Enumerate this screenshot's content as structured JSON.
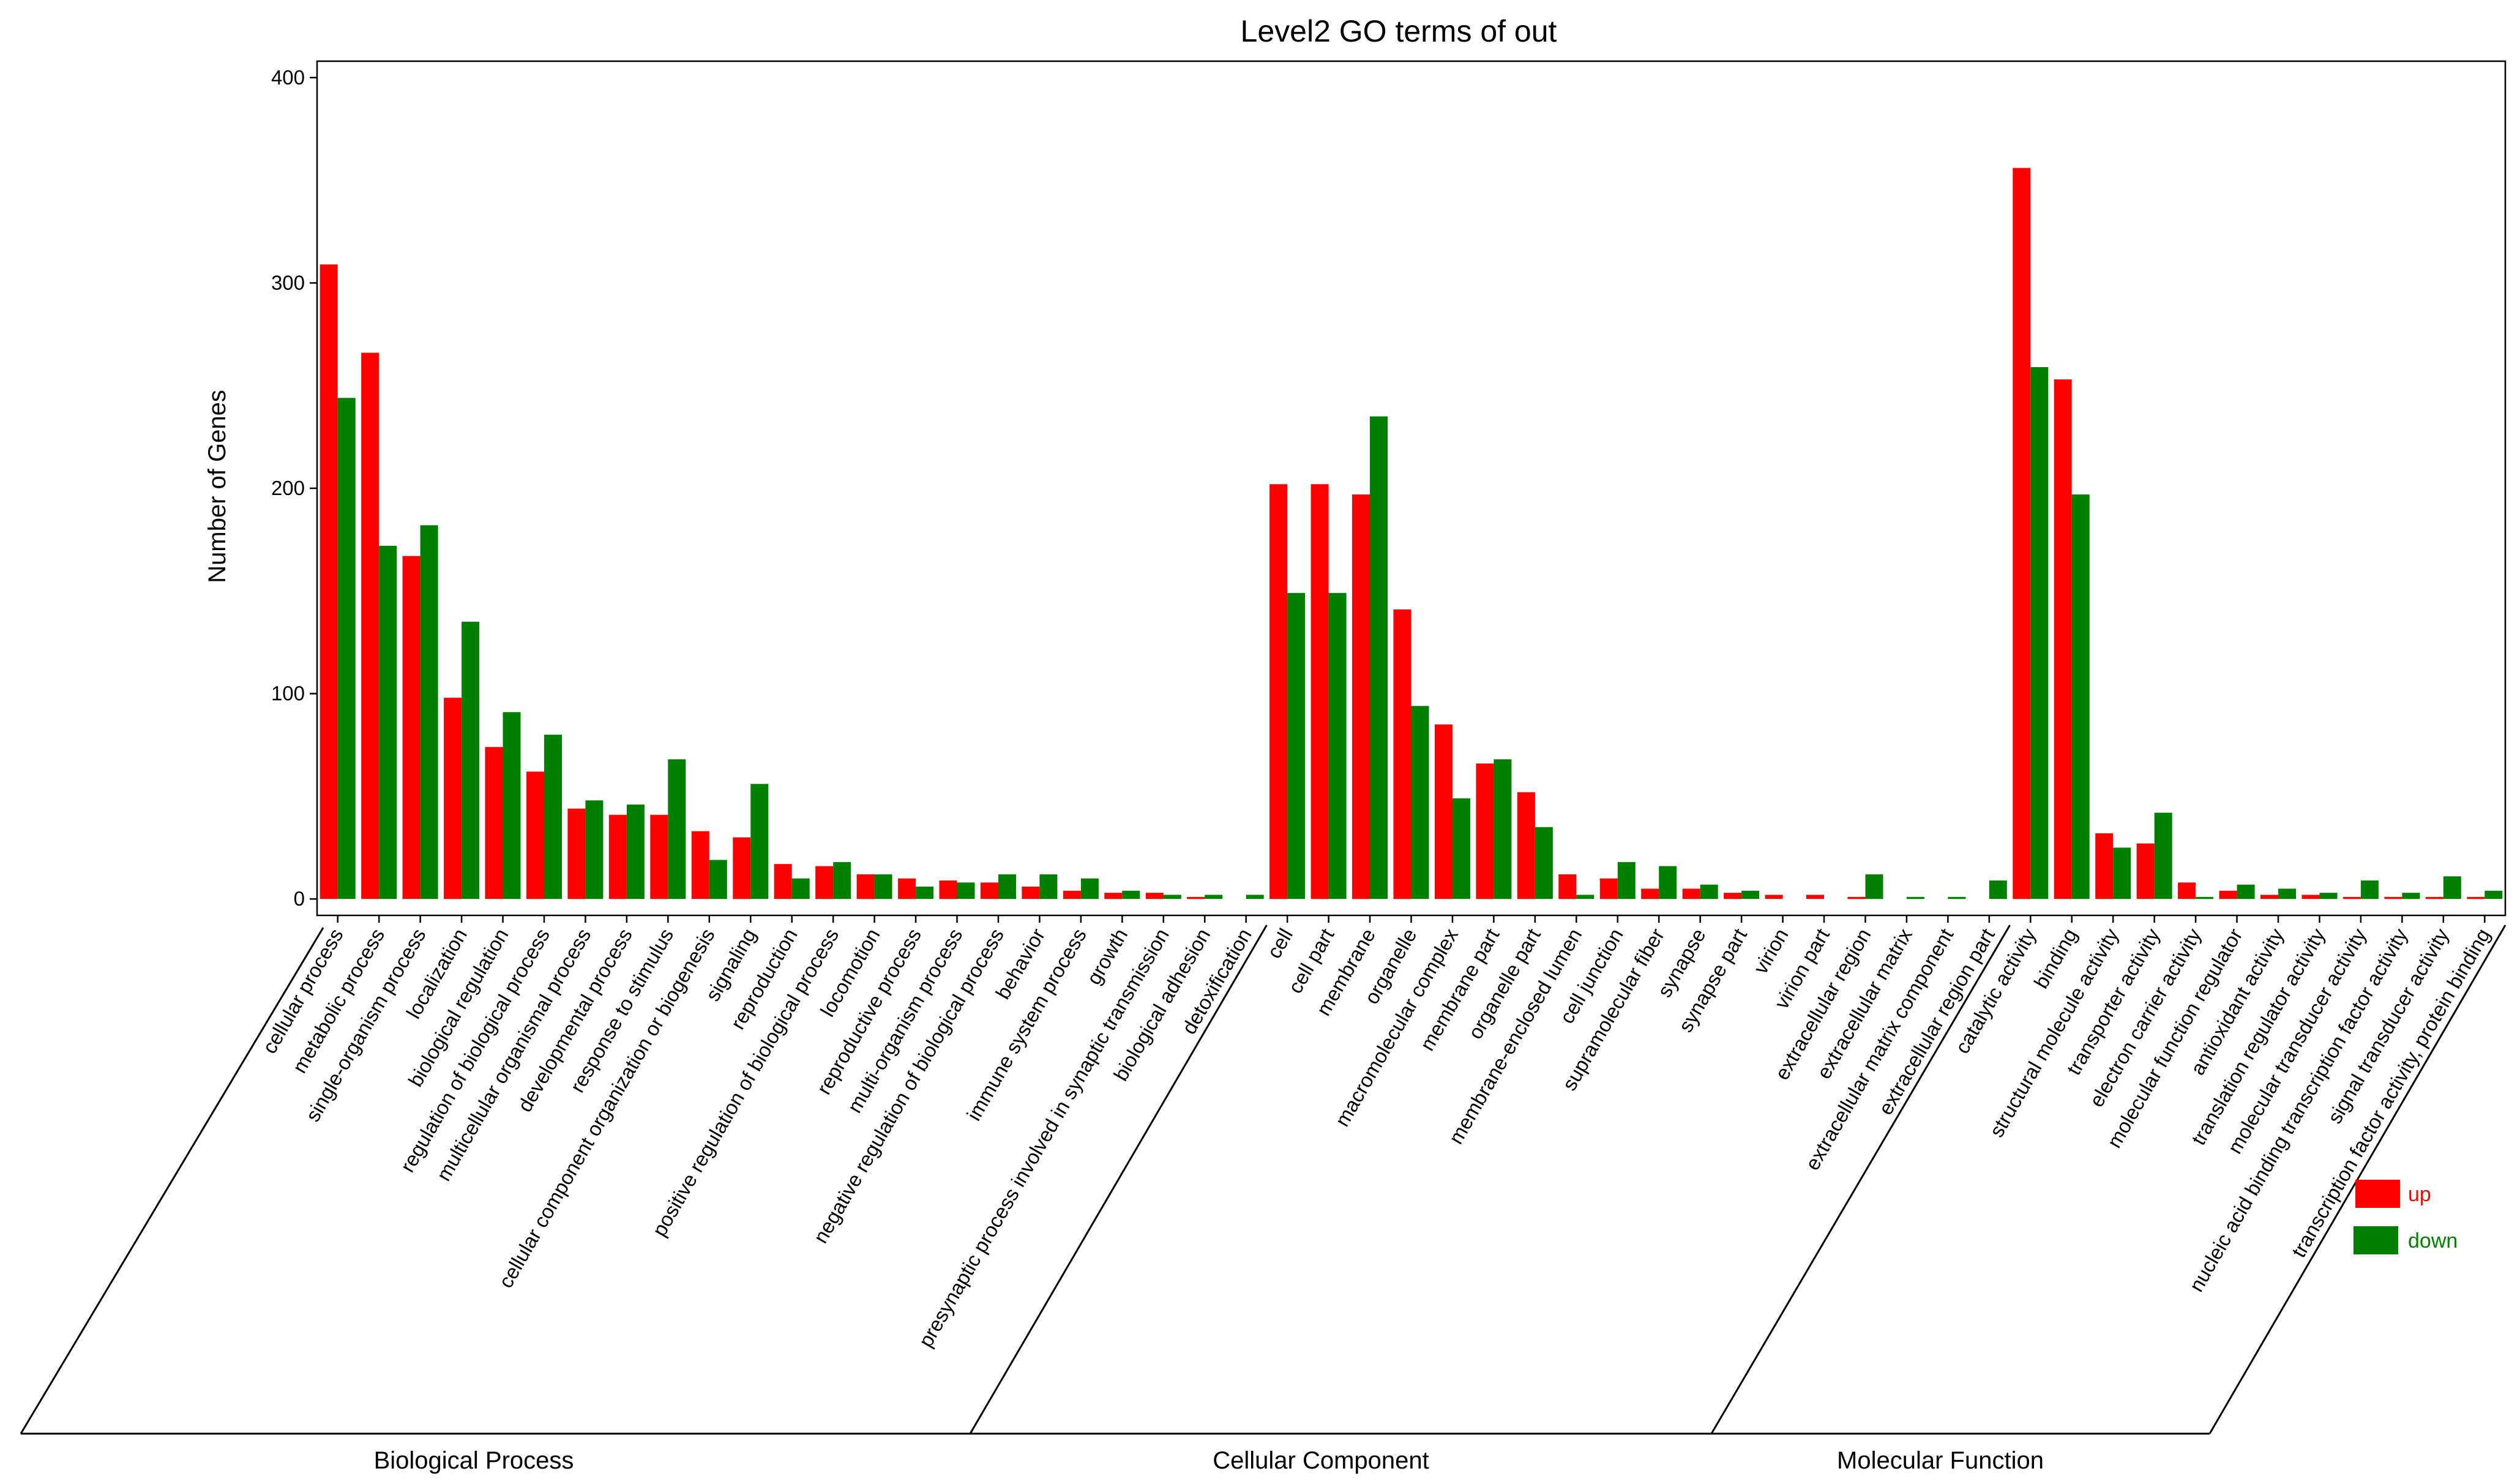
{
  "chart_data": {
    "type": "bar",
    "title": "Level2 GO terms of out",
    "ylabel": "Number of Genes",
    "xlabel": "",
    "ylim": [
      -8,
      408
    ],
    "yticks": [
      0,
      100,
      200,
      300,
      400
    ],
    "grid": false,
    "legend_position": "bottom-right",
    "categories": [
      "cellular process",
      "metabolic process",
      "single-organism process",
      "localization",
      "biological regulation",
      "regulation of biological process",
      "multicellular organismal process",
      "developmental process",
      "response to stimulus",
      "cellular component organization or biogenesis",
      "signaling",
      "reproduction",
      "positive regulation of biological process",
      "locomotion",
      "reproductive process",
      "multi-organism process",
      "negative regulation of biological process",
      "behavior",
      "immune system process",
      "growth",
      "presynaptic process involved in synaptic transmission",
      "biological adhesion",
      "detoxification",
      "cell",
      "cell part",
      "membrane",
      "organelle",
      "macromolecular complex",
      "membrane part",
      "organelle part",
      "membrane-enclosed lumen",
      "cell junction",
      "supramolecular fiber",
      "synapse",
      "synapse part",
      "virion",
      "virion part",
      "extracellular region",
      "extracellular matrix",
      "extracellular matrix component",
      "extracellular region part",
      "catalytic activity",
      "binding",
      "structural molecule activity",
      "transporter activity",
      "electron carrier activity",
      "molecular function regulator",
      "antioxidant activity",
      "translation regulator activity",
      "molecular transducer activity",
      "nucleic acid binding transcription factor activity",
      "signal transducer activity",
      "transcription factor activity, protein binding"
    ],
    "series": [
      {
        "name": "up",
        "color": "#ff0000",
        "values": [
          309,
          266,
          167,
          98,
          74,
          62,
          44,
          41,
          41,
          33,
          30,
          17,
          16,
          12,
          10,
          9,
          8,
          6,
          4,
          3,
          3,
          1,
          0,
          202,
          202,
          197,
          141,
          85,
          66,
          52,
          12,
          10,
          5,
          5,
          3,
          2,
          2,
          1,
          0,
          0,
          0,
          356,
          253,
          32,
          27,
          8,
          4,
          2,
          2,
          1,
          1,
          1,
          1
        ]
      },
      {
        "name": "down",
        "color": "#008000",
        "values": [
          244,
          172,
          182,
          135,
          91,
          80,
          48,
          46,
          68,
          19,
          56,
          10,
          18,
          12,
          6,
          8,
          12,
          12,
          10,
          4,
          2,
          2,
          2,
          149,
          149,
          235,
          94,
          49,
          68,
          35,
          2,
          18,
          16,
          7,
          4,
          0,
          0,
          12,
          1,
          1,
          9,
          259,
          197,
          25,
          42,
          1,
          7,
          5,
          3,
          9,
          3,
          11,
          4
        ]
      }
    ],
    "groups": [
      {
        "name": "Biological Process",
        "start": 0,
        "end": 22
      },
      {
        "name": "Cellular Component",
        "start": 23,
        "end": 40
      },
      {
        "name": "Molecular Function",
        "start": 41,
        "end": 52
      }
    ]
  }
}
